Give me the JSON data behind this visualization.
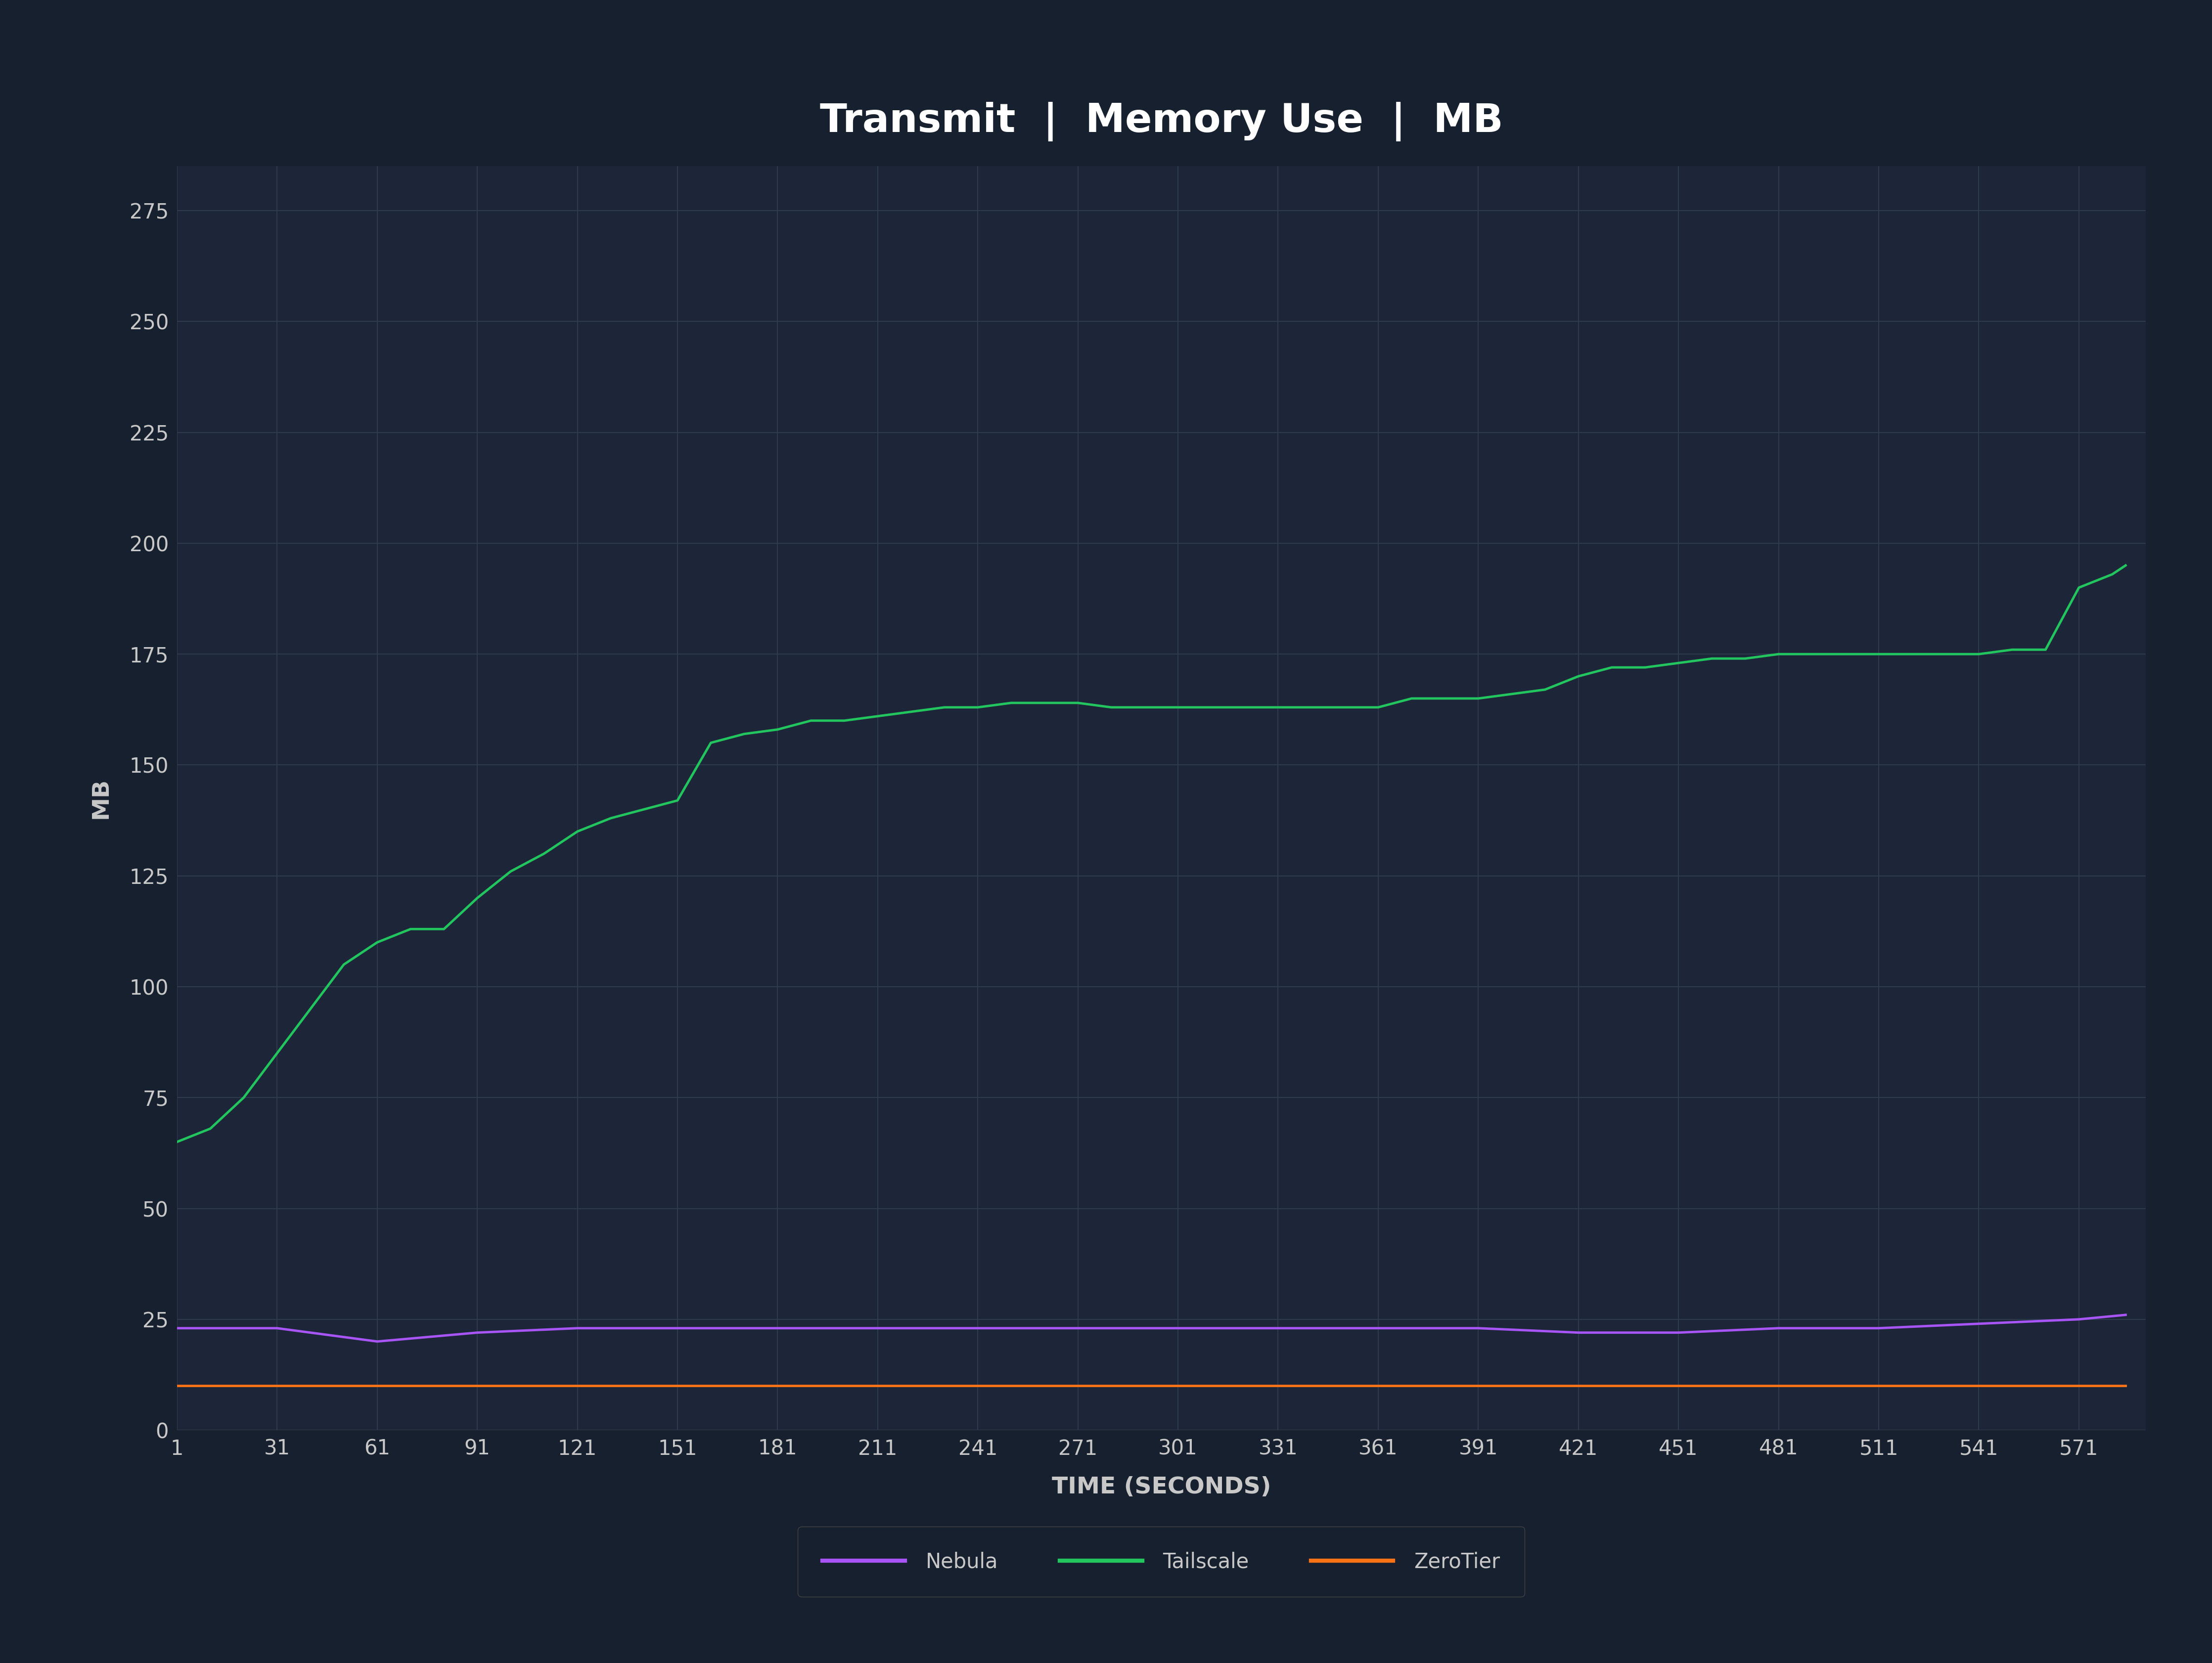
{
  "title": "Transmit  |  Memory Use  |  MB",
  "xlabel": "TIME (SECONDS)",
  "ylabel": "MB",
  "background_color": "#16202e",
  "plot_background_color": "#1c2638",
  "grid_color": "#2e3a4e",
  "text_color": "#c8c8c8",
  "title_color": "#ffffff",
  "ylim": [
    0,
    285
  ],
  "yticks": [
    0,
    25,
    50,
    75,
    100,
    125,
    150,
    175,
    200,
    225,
    250,
    275
  ],
  "xticks": [
    1,
    31,
    61,
    91,
    121,
    151,
    181,
    211,
    241,
    271,
    301,
    331,
    361,
    391,
    421,
    451,
    481,
    511,
    541,
    571
  ],
  "xlim": [
    1,
    591
  ],
  "nebula_color": "#a855f7",
  "tailscale_color": "#22c55e",
  "zerotier_color": "#f97316",
  "line_width": 3.5,
  "nebula_x": [
    1,
    31,
    61,
    91,
    121,
    151,
    181,
    211,
    241,
    271,
    301,
    331,
    361,
    391,
    421,
    451,
    481,
    511,
    541,
    571,
    585
  ],
  "nebula_y": [
    23,
    23,
    20,
    22,
    23,
    23,
    23,
    23,
    23,
    23,
    23,
    23,
    23,
    23,
    22,
    22,
    23,
    23,
    24,
    25,
    26
  ],
  "tailscale_x": [
    1,
    11,
    21,
    31,
    41,
    51,
    61,
    71,
    81,
    91,
    101,
    111,
    121,
    131,
    141,
    151,
    161,
    171,
    181,
    191,
    201,
    211,
    221,
    231,
    241,
    251,
    261,
    271,
    281,
    291,
    301,
    311,
    321,
    331,
    341,
    351,
    361,
    371,
    381,
    391,
    401,
    411,
    421,
    431,
    441,
    451,
    461,
    471,
    481,
    491,
    501,
    511,
    521,
    531,
    541,
    551,
    561,
    571,
    581,
    585
  ],
  "tailscale_y": [
    65,
    68,
    75,
    85,
    95,
    105,
    110,
    113,
    113,
    120,
    126,
    130,
    135,
    138,
    140,
    142,
    155,
    157,
    158,
    160,
    160,
    161,
    162,
    163,
    163,
    164,
    164,
    164,
    163,
    163,
    163,
    163,
    163,
    163,
    163,
    163,
    163,
    165,
    165,
    165,
    166,
    167,
    170,
    172,
    172,
    173,
    174,
    174,
    175,
    175,
    175,
    175,
    175,
    175,
    175,
    176,
    176,
    190,
    193,
    195
  ],
  "zerotier_x": [
    1,
    31,
    61,
    91,
    121,
    151,
    181,
    211,
    241,
    271,
    301,
    331,
    361,
    391,
    421,
    451,
    481,
    511,
    541,
    571,
    585
  ],
  "zerotier_y": [
    10,
    10,
    10,
    10,
    10,
    10,
    10,
    10,
    10,
    10,
    10,
    10,
    10,
    10,
    10,
    10,
    10,
    10,
    10,
    10,
    10
  ],
  "legend_facecolor": "#16202e",
  "legend_edgecolor": "#444444",
  "title_fontsize": 58,
  "label_fontsize": 34,
  "tick_fontsize": 30
}
